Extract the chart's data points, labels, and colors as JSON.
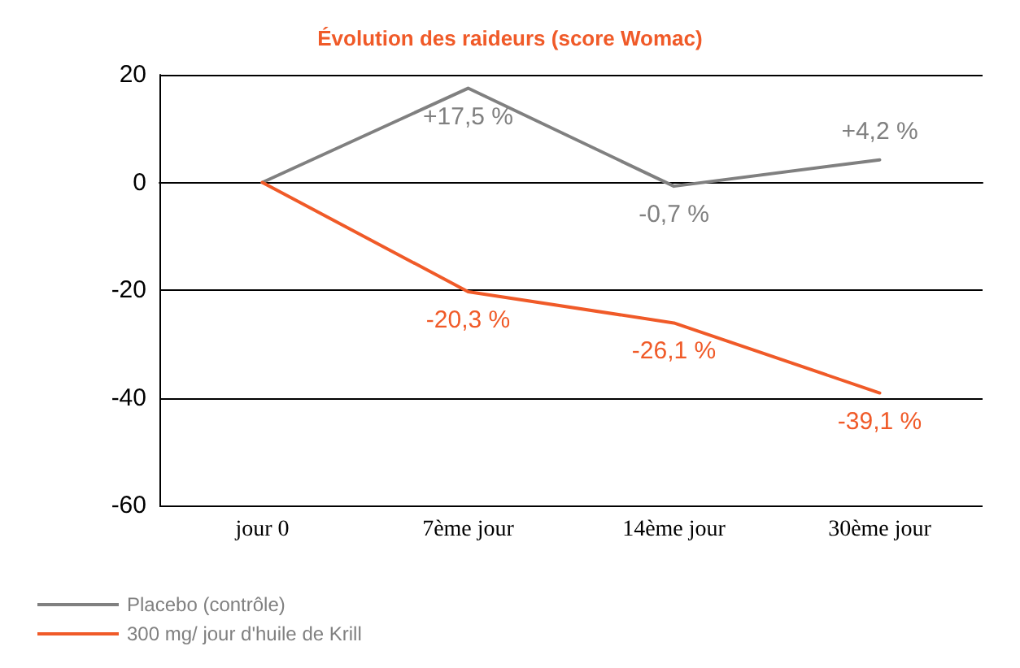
{
  "chart_data": {
    "type": "line",
    "title": "Évolution des raideurs (score Womac)",
    "categories": [
      "jour 0",
      "7ème jour",
      "14ème jour",
      "30ème jour"
    ],
    "series": [
      {
        "name": "Placebo (contrôle)",
        "color": "#808080",
        "values": [
          0,
          17.5,
          -0.7,
          4.2
        ],
        "value_labels": [
          null,
          "+17,5 %",
          "-0,7 %",
          "+4,2 %"
        ]
      },
      {
        "name": "300 mg/ jour d'huile de Krill",
        "color": "#f05a28",
        "values": [
          0,
          -20.3,
          -26.1,
          -39.1
        ],
        "value_labels": [
          null,
          "-20,3 %",
          "-26,1 %",
          "-39,1 %"
        ]
      }
    ],
    "ylim": [
      -60,
      20
    ],
    "yticks": [
      -60,
      -40,
      -20,
      0,
      20
    ],
    "grid": "y",
    "legend": "bottom left",
    "marker": "none",
    "line_style": "solid"
  }
}
